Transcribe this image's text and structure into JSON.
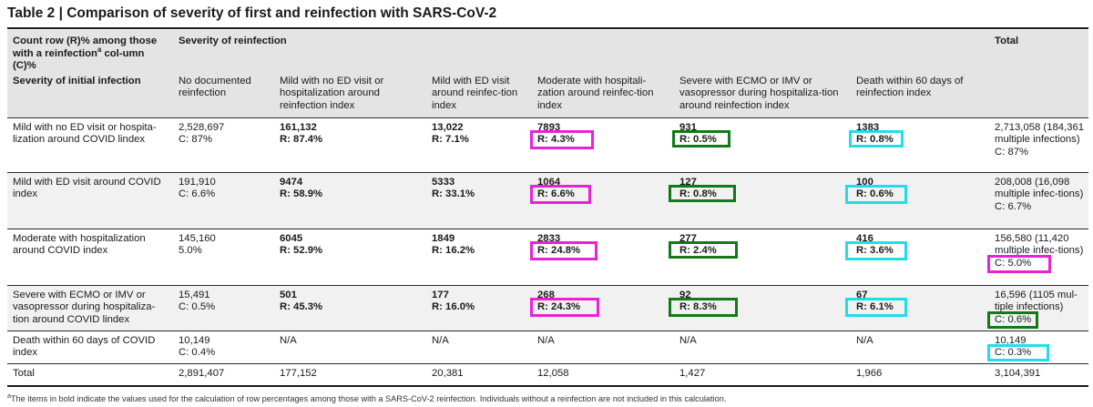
{
  "title": "Table 2 | Comparison of severity of first and reinfection with SARS-CoV-2",
  "header": {
    "corner_label": "Count row (R)% among those with a reinfection",
    "corner_sup": "a",
    "corner_label_rest": " col-umn (C)%",
    "initial_label": "Severity of initial infection",
    "reinfection_label": "Severity of reinfection",
    "total_label": "Total",
    "columns": [
      "No documented reinfection",
      "Mild with no ED visit or hospitalization around reinfection index",
      "Mild with ED visit around reinfec-tion index",
      "Moderate with hospitali-zation around reinfec-tion index",
      "Severe with ECMO or IMV or vasopressor during hospitaliza-tion around reinfection index",
      "Death within 60 days of reinfection index"
    ]
  },
  "rows": [
    {
      "label": "Mild with no ED visit or hospita-lization around COVID lindex",
      "c0_count": "2,528,697",
      "c0_pct": "C: 87%",
      "c1_count": "161,132",
      "c1_pct": "R: 87.4%",
      "c2_count": "13,022",
      "c2_pct": "R: 7.1%",
      "c3_count": "7893",
      "c3_pct": "R: 4.3%",
      "c4_count": "931",
      "c4_pct": "R: 0.5%",
      "c5_count": "1383",
      "c5_pct": "R: 0.8%",
      "total": "2,713,058 (184,361 multiple infections)",
      "total_pct": "C: 87%"
    },
    {
      "label": "Mild with ED visit around COVID index",
      "c0_count": "191,910",
      "c0_pct": "C: 6.6%",
      "c1_count": "9474",
      "c1_pct": "R: 58.9%",
      "c2_count": "5333",
      "c2_pct": "R: 33.1%",
      "c3_count": "1064",
      "c3_pct": "R: 6.6%",
      "c4_count": "127",
      "c4_pct": "R: 0.8%",
      "c5_count": "100",
      "c5_pct": "R: 0.6%",
      "total": "208,008 (16,098 multiple infec-tions)",
      "total_pct": "C: 6.7%"
    },
    {
      "label": "Moderate with hospitalization around COVID index",
      "c0_count": "145,160",
      "c0_pct": "5.0%",
      "c1_count": "6045",
      "c1_pct": "R: 52.9%",
      "c2_count": "1849",
      "c2_pct": "R: 16.2%",
      "c3_count": "2833",
      "c3_pct": "R: 24.8%",
      "c4_count": "277",
      "c4_pct": "R: 2.4%",
      "c5_count": "416",
      "c5_pct": "R: 3.6%",
      "total": "156,580 (11,420 multiple infec-tions)",
      "total_pct": "C: 5.0%"
    },
    {
      "label": "Severe with ECMO or IMV or vasopressor during hospitaliza-tion around COVID lindex",
      "c0_count": "15,491",
      "c0_pct": "C: 0.5%",
      "c1_count": "501",
      "c1_pct": "R: 45.3%",
      "c2_count": "177",
      "c2_pct": "R: 16.0%",
      "c3_count": "268",
      "c3_pct": "R: 24.3%",
      "c4_count": "92",
      "c4_pct": "R: 8.3%",
      "c5_count": "67",
      "c5_pct": "R: 6.1%",
      "total": "16,596 (1105 mul-tiple infections)",
      "total_pct": "C: 0.6%"
    },
    {
      "label": "Death within 60 days of COVID index",
      "c0_count": "10,149",
      "c0_pct": "C: 0.4%",
      "c1_count": "N/A",
      "c2_count": "N/A",
      "c3_count": "N/A",
      "c4_count": "N/A",
      "c5_count": "N/A",
      "total": "10,149",
      "total_pct": "C: 0.3%"
    }
  ],
  "totals_row": {
    "label": "Total",
    "values": [
      "2,891,407",
      "177,152",
      "20,381",
      "12,058",
      "1,427",
      "1,966",
      "3,104,391"
    ]
  },
  "footnote": {
    "mark": "a",
    "text": "The items in bold indicate the values used for the calculation of row percentages among those with a SARS-CoV-2 reinfection. Individuals without a reinfection are not included in this calculation."
  },
  "highlight_colors": {
    "moderate": "#ea22d6",
    "severe": "#127a17",
    "death": "#1edfe8"
  }
}
